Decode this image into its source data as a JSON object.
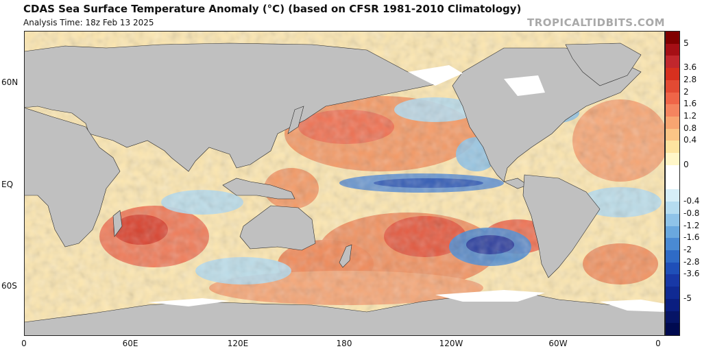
{
  "header": {
    "title": "CDAS Sea Surface Temperature Anomaly (°C) (based on CFSR 1981-2010 Climatology)",
    "subtitle": "Analysis Time: 18z Feb 13 2025",
    "credit": "TROPICALTIDBITS.COM"
  },
  "axes": {
    "lat_labels": [
      "60N",
      "EQ",
      "60S"
    ],
    "lon_labels": [
      "0",
      "60E",
      "120E",
      "180",
      "120W",
      "60W",
      "0"
    ]
  },
  "colorbar": {
    "labels": [
      "5",
      "3.6",
      "2.8",
      "2",
      "1.6",
      "1.2",
      "0.8",
      "0.4",
      "0",
      "-0.4",
      "-0.8",
      "-1.2",
      "-1.6",
      "-2",
      "-2.8",
      "-3.6",
      "-5"
    ],
    "colors": [
      "#800000",
      "#a50f15",
      "#c1272d",
      "#d7301f",
      "#e34a33",
      "#ef6548",
      "#f4845f",
      "#f8a571",
      "#fbc586",
      "#fde4a0",
      "#fff6c8",
      "#ffffff",
      "#ffffff",
      "#d6eef8",
      "#b5dcf0",
      "#8fc3e8",
      "#6aa8de",
      "#4a8ad3",
      "#2f6bc6",
      "#1f4fb8",
      "#1838a6",
      "#102a93",
      "#0a1e80",
      "#061466",
      "#000a50"
    ],
    "land_color": "#c0c0c0"
  }
}
